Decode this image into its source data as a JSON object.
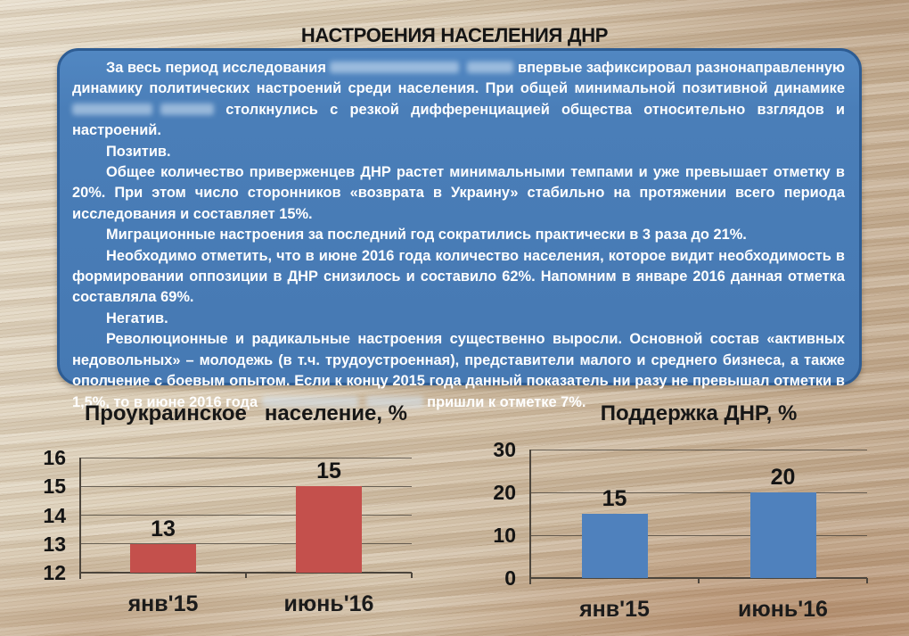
{
  "page": {
    "title": "НАСТРОЕНИЯ НАСЕЛЕНИЯ ДНР"
  },
  "box": {
    "p1a": "За весь период исследования ",
    "p1b": " впервые зафиксировал  разнонаправленную динамику политических настроений среди населения. При общей минимальной позитивной динамике ",
    "p1c": " столкнулись с резкой дифференциацией общества относительно взглядов и настроений.",
    "p2": "Позитив.",
    "p3": "Общее количество приверженцев  ДНР растет минимальными темпами и уже превышает отметку в 20%. При этом число сторонников «возврата в Украину» стабильно на протяжении всего периода исследования и составляет 15%.",
    "p4": "Миграционные настроения за последний год сократились практически в 3 раза до 21%.",
    "p5": "Необходимо отметить, что в июне 2016 года количество населения, которое видит необходимость в формировании оппозиции в ДНР снизилось и составило 62%. Напомним в январе 2016 данная отметка составляла 69%.",
    "p6": "Негатив.",
    "p7a": "Революционные и радикальные настроения существенно выросли. Основной состав «активных недовольных» – молодежь (в т.ч. трудоустроенная), представители малого и среднего бизнеса, а также ополчение с боевым опытом.  Если к концу 2015 года данный показатель ни разу не превышал отметки в 1,5%, то в июне 2016 года ",
    "p7b": " пришли к отметке 7%."
  },
  "chart_data": [
    {
      "type": "bar",
      "title": "Проукраинское   население, %",
      "categories": [
        "янв'15",
        "июнь'16"
      ],
      "values": [
        13,
        15
      ],
      "data_labels": [
        13,
        15
      ],
      "ylim": [
        12,
        16
      ],
      "yticks": [
        16,
        15,
        14,
        13,
        12
      ],
      "xlabel": "",
      "ylabel": "",
      "grid": true,
      "legend": false,
      "bar_color": "#C4504C"
    },
    {
      "type": "bar",
      "title": "Поддержка ДНР, %",
      "categories": [
        "янв'15",
        "июнь'16"
      ],
      "values": [
        15,
        20
      ],
      "data_labels": [
        15,
        20
      ],
      "ylim": [
        0,
        30
      ],
      "yticks": [
        30,
        20,
        10,
        0
      ],
      "xlabel": "",
      "ylabel": "",
      "grid": true,
      "legend": false,
      "bar_color": "#4F81BD"
    }
  ],
  "colors": {
    "box_fill": "#4A7EB8",
    "box_border": "#2D5C93",
    "box_text": "#FFFFFF",
    "title_text": "#151515",
    "bar_red": "#C4504C",
    "bar_blue": "#4F81BD",
    "grid": "#48413A",
    "wood_light": "#E6DCC9",
    "wood_dark": "#BDA184"
  }
}
